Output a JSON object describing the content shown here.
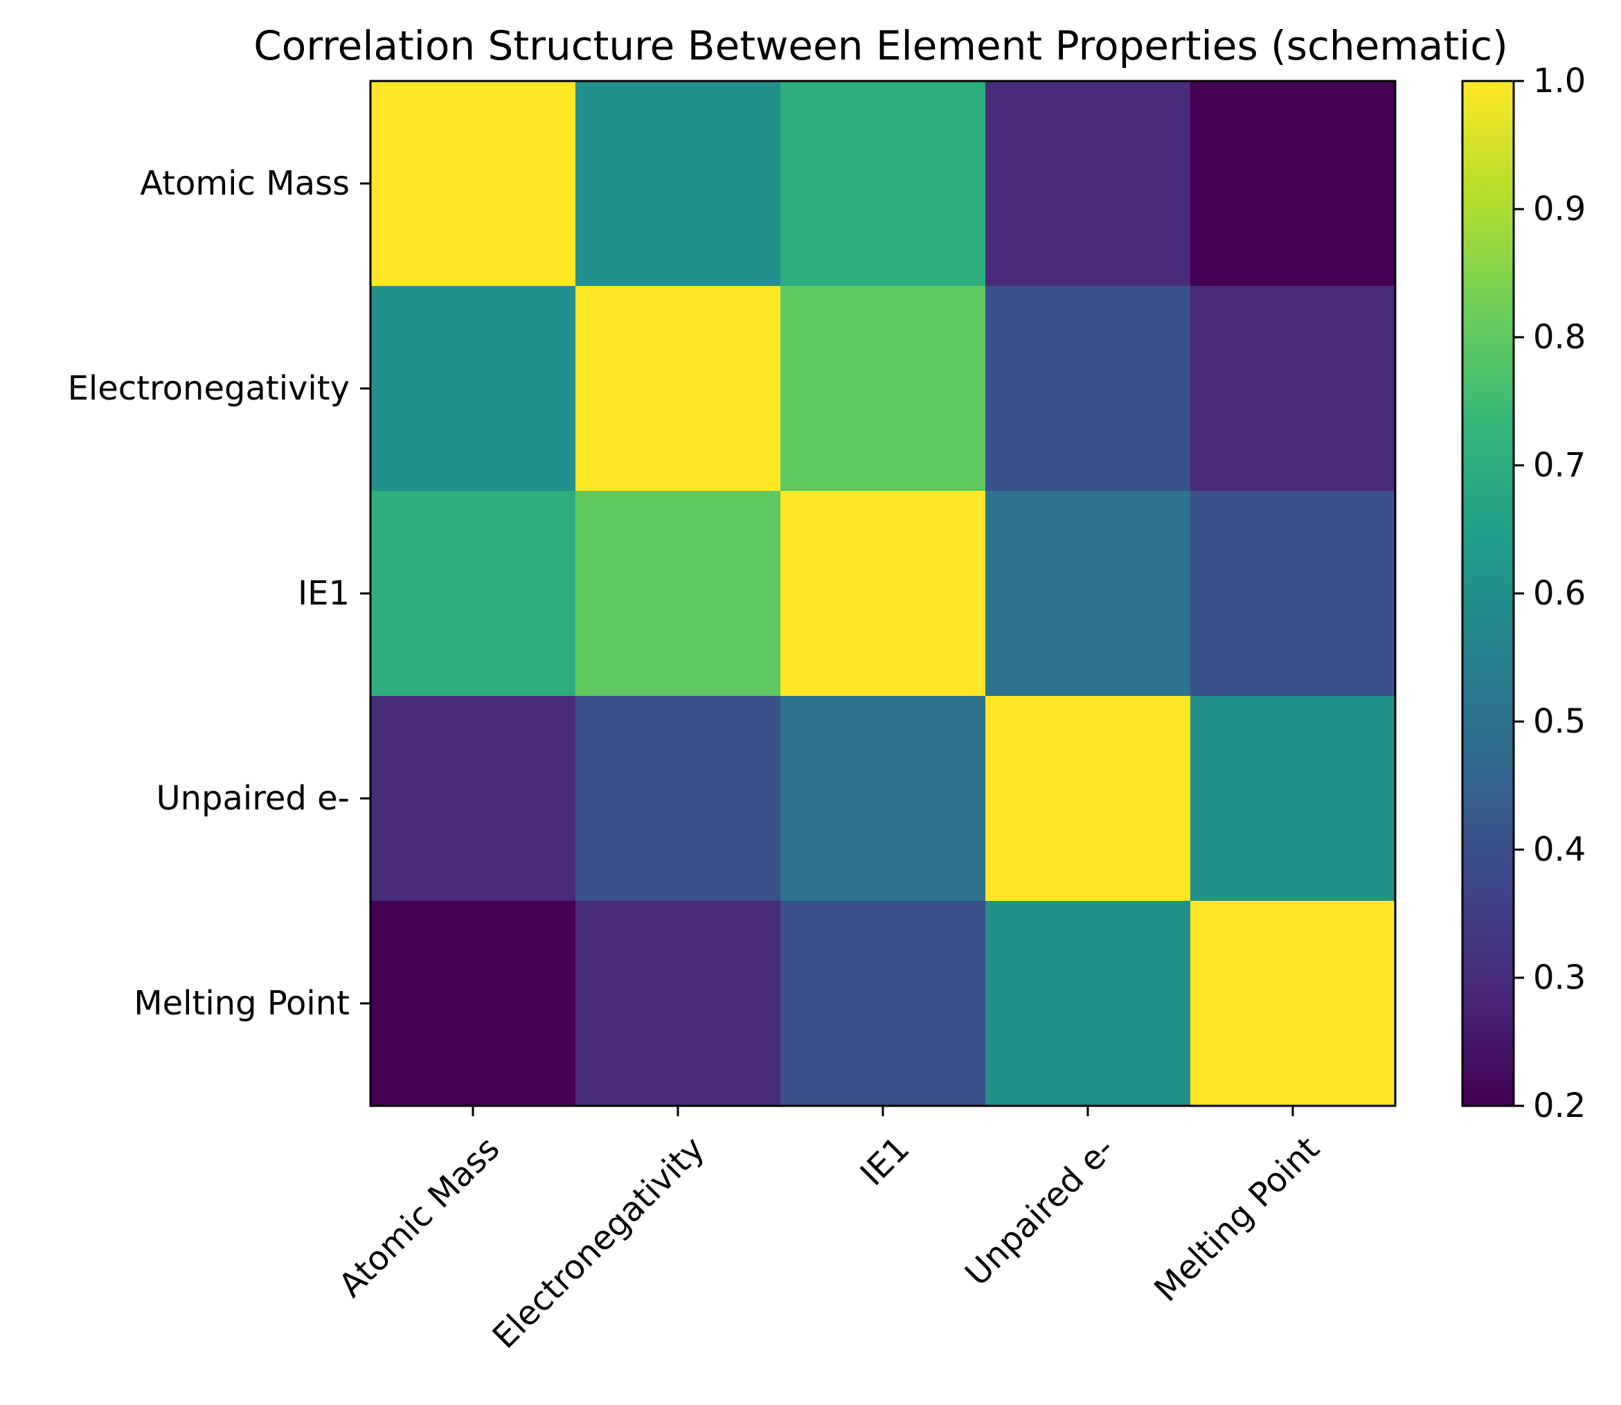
{
  "chart_data": {
    "type": "heatmap",
    "title": "Correlation Structure Between Element Properties (schematic)",
    "x_categories": [
      "Atomic Mass",
      "Electronegativity",
      "IE1",
      "Unpaired e-",
      "Melting Point"
    ],
    "y_categories": [
      "Atomic Mass",
      "Electronegativity",
      "IE1",
      "Unpaired e-",
      "Melting Point"
    ],
    "values": [
      [
        1.0,
        0.6,
        0.7,
        0.3,
        0.2
      ],
      [
        0.6,
        1.0,
        0.8,
        0.4,
        0.3
      ],
      [
        0.7,
        0.8,
        1.0,
        0.5,
        0.4
      ],
      [
        0.3,
        0.4,
        0.5,
        1.0,
        0.6
      ],
      [
        0.2,
        0.3,
        0.4,
        0.6,
        1.0
      ]
    ],
    "colorbar": {
      "colormap": "viridis",
      "range": [
        0.2,
        1.0
      ],
      "ticks": [
        "0.2",
        "0.3",
        "0.4",
        "0.5",
        "0.6",
        "0.7",
        "0.8",
        "0.9",
        "1.0"
      ]
    },
    "colors": {
      "viridis": [
        "#440154",
        "#482878",
        "#3e4989",
        "#31688e",
        "#26828e",
        "#1f9e89",
        "#35b779",
        "#6ece58",
        "#b5de2b",
        "#fde725"
      ]
    },
    "grid": false,
    "legend": "colorbar-right"
  }
}
